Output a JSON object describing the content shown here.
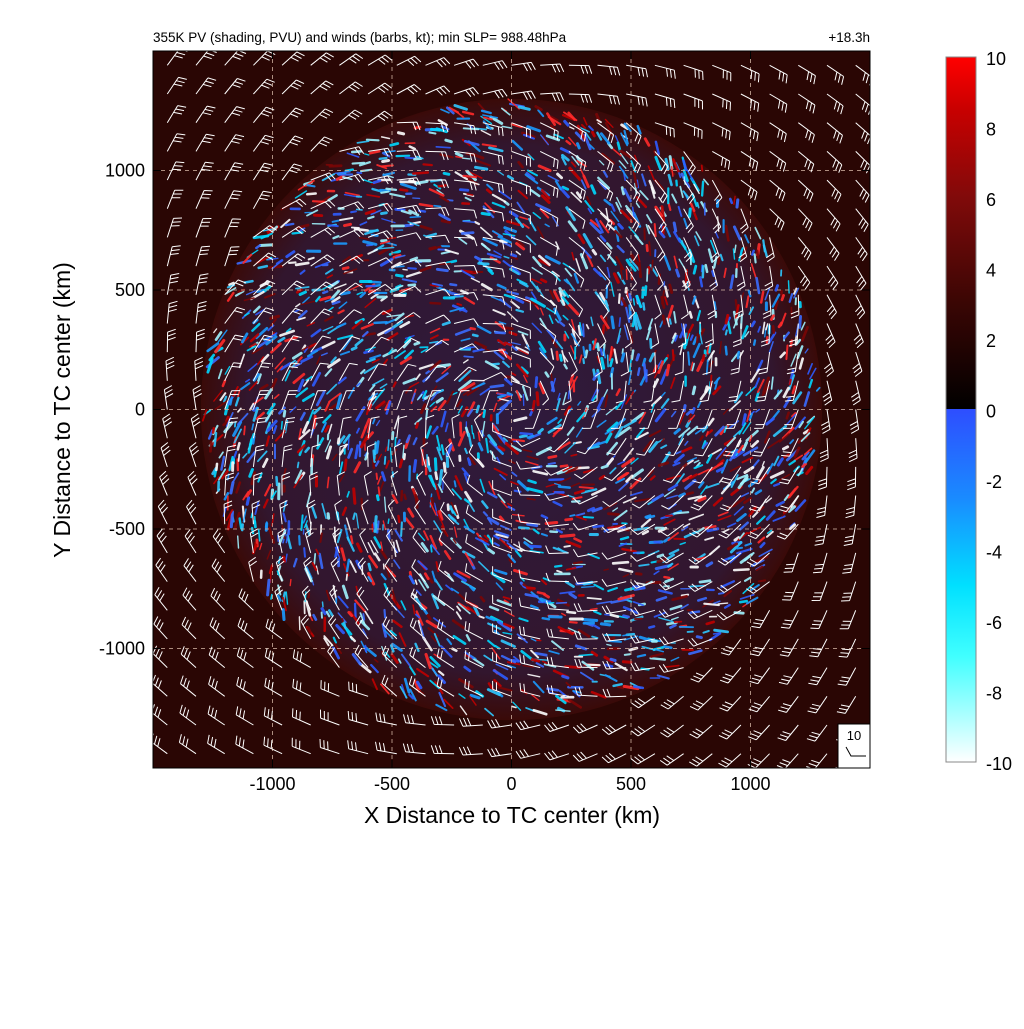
{
  "chart_data": {
    "type": "heatmap",
    "title_left": "355K PV (shading, PVU) and winds (barbs, kt); min SLP= 988.48hPa",
    "title_right": "+18.3h",
    "xlabel": "X Distance to TC center (km)",
    "ylabel": "Y Distance to TC center (km)",
    "xlim": [
      -1500,
      1500
    ],
    "ylim": [
      -1500,
      1500
    ],
    "x_ticks": [
      -1000,
      -500,
      0,
      500,
      1000
    ],
    "y_ticks": [
      -1000,
      -500,
      0,
      500,
      1000
    ],
    "x_tick_labels": [
      "-1000",
      "-500",
      "0",
      "500",
      "1000"
    ],
    "y_tick_labels": [
      "-1000",
      "-500",
      "0",
      "500",
      "1000"
    ],
    "grid": true,
    "grid_style": "dashed",
    "colorbar": {
      "range": [
        -10,
        10
      ],
      "ticks": [
        10,
        8,
        6,
        4,
        2,
        0,
        -2,
        -4,
        -6,
        -8,
        -10
      ],
      "tick_labels": [
        "10",
        "8",
        "6",
        "4",
        "2",
        "0",
        "-2",
        "-4",
        "-6",
        "-8",
        "-10"
      ],
      "positive_colors": [
        "#1a0000",
        "#3a0604",
        "#800a0a",
        "#c00000",
        "#ff0000"
      ],
      "negative_colors": [
        "#2e4eff",
        "#1a7fff",
        "#00d0ff",
        "#00ffff",
        "#7ff6ff",
        "#ffffff"
      ]
    },
    "field": {
      "background_value": 2.5,
      "active_disk_radius_km": 1300,
      "center_km": [
        0,
        0
      ]
    },
    "barb_legend": {
      "label": "10",
      "speed_kt": 10
    },
    "colors": {
      "background_outer": "#2a0604",
      "barb": "#ffffff",
      "grid": "#d0b0a0",
      "axis": "#000000"
    }
  }
}
